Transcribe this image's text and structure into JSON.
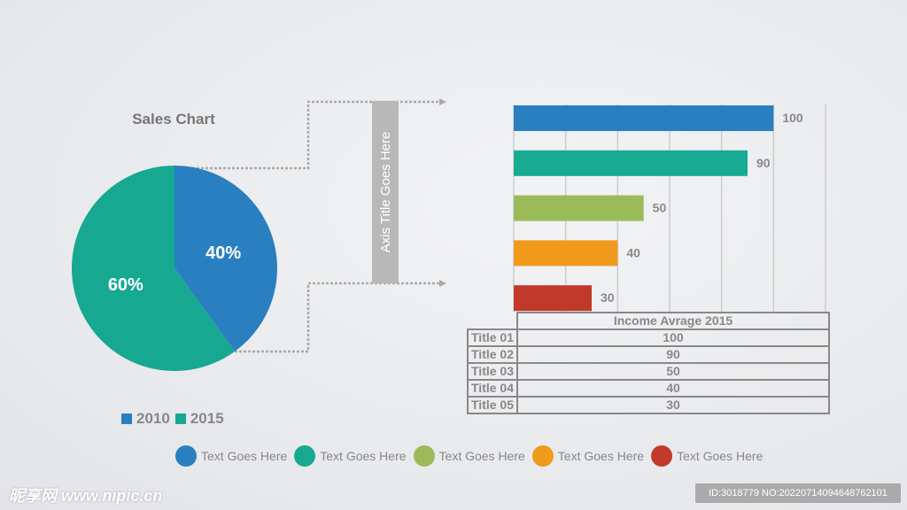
{
  "chart_data": [
    {
      "type": "pie",
      "title": "Sales Chart",
      "slices": [
        {
          "label": "2010",
          "value": 40,
          "text": "40%",
          "color": "#2a7fc0"
        },
        {
          "label": "2015",
          "value": 60,
          "text": "60%",
          "color": "#17a891"
        }
      ],
      "legend": "bottom"
    },
    {
      "type": "bar",
      "orientation": "horizontal",
      "axis_title": "Axis Title Goes Here",
      "categories": [
        "Title 01",
        "Title 02",
        "Title 03",
        "Title 04",
        "Title 05"
      ],
      "values": [
        100,
        90,
        50,
        40,
        30
      ],
      "colors": [
        "#2a7fc0",
        "#17ab94",
        "#9bbb59",
        "#f09a1b",
        "#c0392b"
      ],
      "xlim": [
        0,
        120
      ],
      "grid": true,
      "table": {
        "header": "Income Avrage 2015",
        "rows": [
          [
            "Title 01",
            "100"
          ],
          [
            "Title 02",
            "90"
          ],
          [
            "Title 03",
            "50"
          ],
          [
            "Title 04",
            "40"
          ],
          [
            "Title 05",
            "30"
          ]
        ]
      }
    }
  ],
  "bottom_legend": [
    {
      "label": "Text Goes Here",
      "color": "#2a7fc0"
    },
    {
      "label": "Text Goes Here",
      "color": "#17a891"
    },
    {
      "label": "Text Goes Here",
      "color": "#9bbb59"
    },
    {
      "label": "Text Goes Here",
      "color": "#f09a1b"
    },
    {
      "label": "Text Goes Here",
      "color": "#c0392b"
    }
  ],
  "watermark": "昵享网 www.nipic.cn",
  "image_id": "ID:3018779 NO:20220714094648762101"
}
